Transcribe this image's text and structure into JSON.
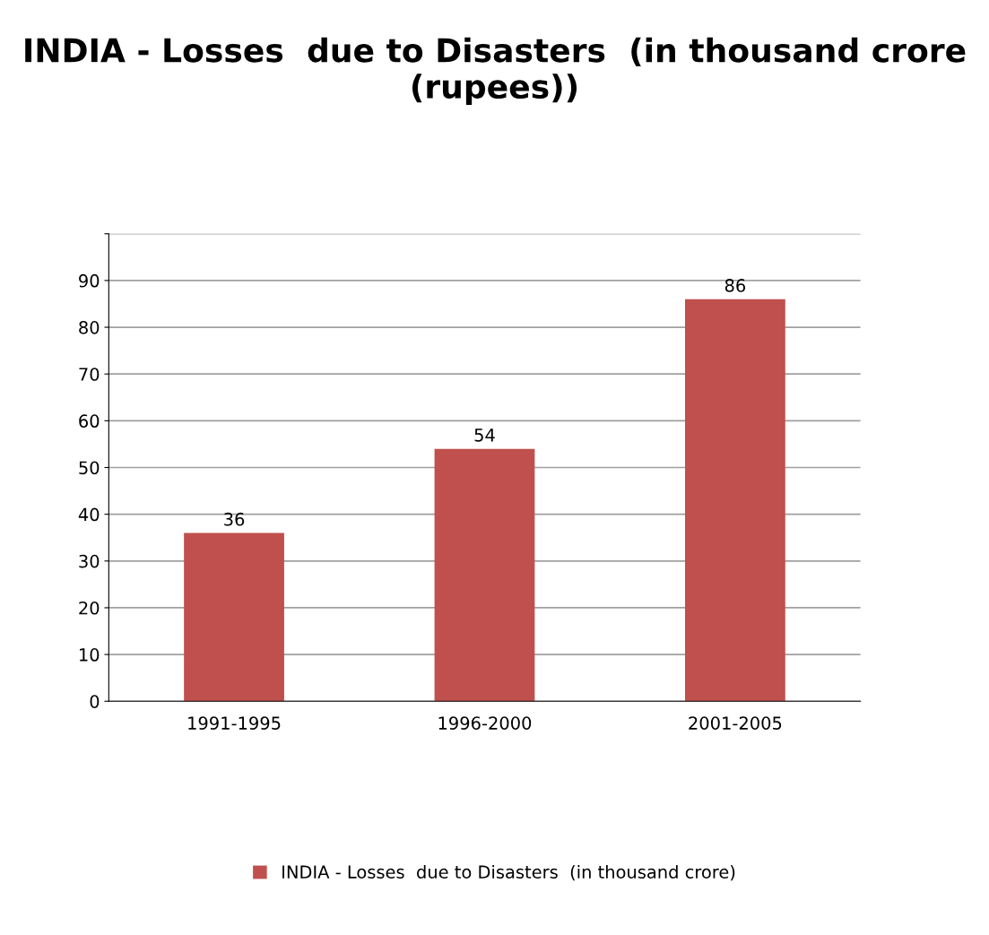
{
  "chart_data": {
    "type": "bar",
    "title": "INDIA - Losses  due to Disasters  (in thousand crore (rupees))",
    "categories": [
      "1991-1995",
      "1996-2000",
      "2001-2005"
    ],
    "series": [
      {
        "name": "INDIA - Losses  due to Disasters  (in thousand crore)",
        "color": "#c0504d",
        "values": [
          36,
          54,
          86
        ]
      }
    ],
    "ylim": [
      0,
      100
    ],
    "yticks": [
      0,
      10,
      20,
      30,
      40,
      50,
      60,
      70,
      80,
      90,
      {
        "value": 100,
        "label": null
      }
    ],
    "grid": "y",
    "legend": "bottom",
    "data_labels": true
  }
}
